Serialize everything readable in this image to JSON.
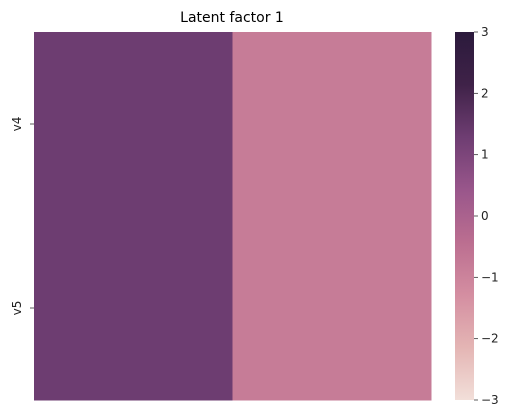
{
  "chart_data": {
    "type": "heatmap",
    "title": "Latent factor 1",
    "xlabel": "",
    "ylabel": "",
    "x_tick_labels": [
      "",
      ""
    ],
    "y_tick_labels": [
      "v4",
      "v5"
    ],
    "values": [
      [
        1.3,
        -0.8
      ],
      [
        1.3,
        -0.8
      ]
    ],
    "vmin": -3,
    "vmax": 3,
    "colorbar": {
      "ticks": [
        3,
        2,
        1,
        0,
        -1,
        -2,
        -3
      ],
      "tick_labels": [
        "3",
        "2",
        "1",
        "0",
        "−1",
        "−2",
        "−3"
      ]
    },
    "colormap": [
      "#f2dfd9",
      "#e4b5b4",
      "#d48ea1",
      "#bb6e90",
      "#99568b",
      "#6e3d72",
      "#3f2248",
      "#2b1a3c"
    ]
  }
}
